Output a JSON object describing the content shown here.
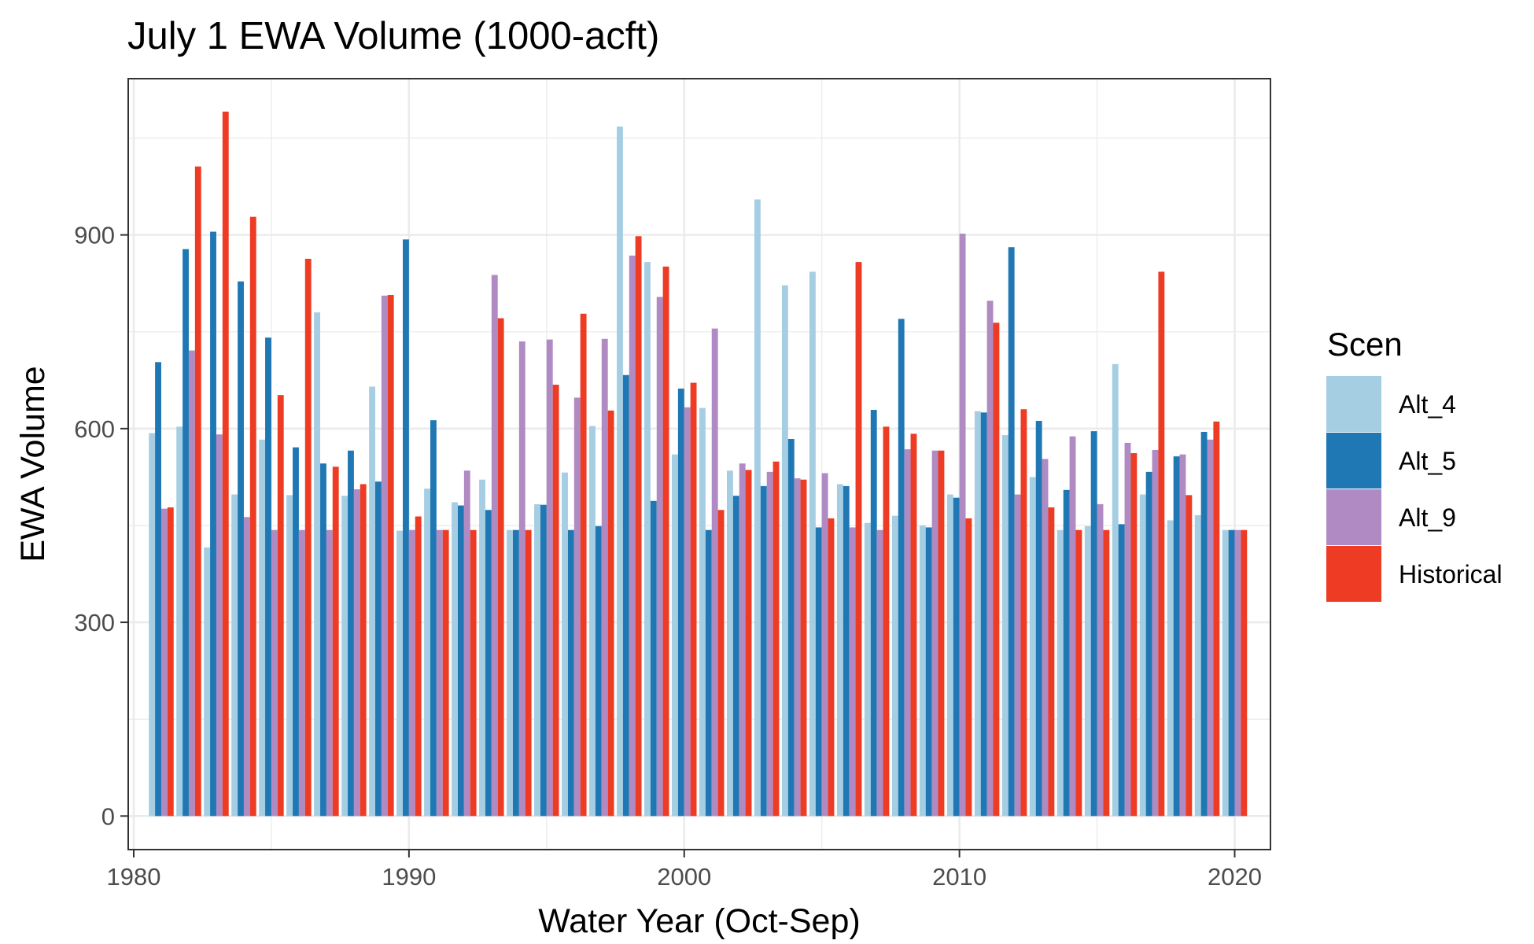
{
  "chart_data": {
    "type": "bar",
    "title": "July 1 EWA Volume (1000-acft)",
    "xlabel": "Water Year (Oct-Sep)",
    "ylabel": "EWA Volume",
    "xlim": [
      1979.8,
      2021.3
    ],
    "ylim": [
      -52,
      1142
    ],
    "x_ticks": [
      1980,
      1990,
      2000,
      2010,
      2020
    ],
    "y_ticks": [
      0,
      300,
      600,
      900
    ],
    "grid": true,
    "legend_title": "Scen",
    "legend_position": "right",
    "x": [
      1981,
      1982,
      1983,
      1984,
      1985,
      1986,
      1987,
      1988,
      1989,
      1990,
      1991,
      1992,
      1993,
      1994,
      1995,
      1996,
      1997,
      1998,
      1999,
      2000,
      2001,
      2002,
      2003,
      2004,
      2005,
      2006,
      2007,
      2008,
      2009,
      2010,
      2011,
      2012,
      2013,
      2014,
      2015,
      2016,
      2017,
      2018,
      2019,
      2020
    ],
    "series": [
      {
        "name": "Alt_4",
        "color": "#a6cee3",
        "values": [
          593,
          603,
          416,
          498,
          583,
          497,
          780,
          496,
          665,
          442,
          507,
          486,
          521,
          443,
          483,
          532,
          604,
          1068,
          858,
          560,
          632,
          535,
          955,
          822,
          843,
          514,
          454,
          465,
          450,
          498,
          627,
          590,
          525,
          443,
          449,
          700,
          498,
          458,
          466,
          443
        ]
      },
      {
        "name": "Alt_5",
        "color": "#1f78b4",
        "values": [
          703,
          878,
          905,
          828,
          741,
          571,
          546,
          566,
          518,
          893,
          613,
          481,
          474,
          443,
          482,
          443,
          449,
          683,
          488,
          662,
          443,
          496,
          511,
          584,
          447,
          511,
          629,
          770,
          447,
          493,
          625,
          881,
          612,
          505,
          596,
          452,
          533,
          557,
          595,
          443
        ]
      },
      {
        "name": "Alt_9",
        "color": "#b08ac2",
        "values": [
          476,
          721,
          591,
          463,
          443,
          443,
          443,
          506,
          806,
          443,
          443,
          535,
          838,
          735,
          738,
          648,
          739,
          868,
          804,
          633,
          755,
          546,
          533,
          523,
          531,
          447,
          443,
          568,
          566,
          902,
          798,
          498,
          553,
          588,
          483,
          578,
          567,
          560,
          583,
          443
        ]
      },
      {
        "name": "Historical",
        "color": "#ee3b24",
        "values": [
          478,
          1006,
          1091,
          928,
          652,
          863,
          541,
          514,
          807,
          464,
          443,
          443,
          771,
          443,
          668,
          778,
          628,
          898,
          851,
          671,
          474,
          536,
          549,
          521,
          461,
          858,
          603,
          592,
          566,
          461,
          764,
          630,
          478,
          443,
          443,
          562,
          843,
          497,
          611,
          443
        ]
      }
    ]
  }
}
